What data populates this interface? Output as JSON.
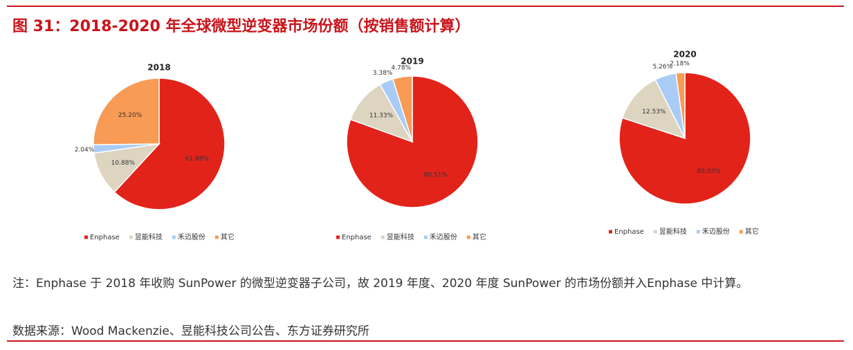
{
  "figure": {
    "title": "图 31：2018-2020 年全球微型逆变器市场份额（按销售额计算）",
    "note": "注：Enphase 于 2018 年收购 SunPower 的微型逆变器子公司，故 2019 年度、2020 年度 SunPower 的市场份额并入Enphase 中计算。",
    "source": "数据来源：Wood Mackenzie、昱能科技公司公告、东方证券研究所"
  },
  "chart_data": [
    {
      "type": "pie",
      "title": "2018",
      "categories": [
        "Enphase",
        "昱能科技",
        "禾迈股份",
        "其它"
      ],
      "values": [
        61.88,
        10.88,
        2.04,
        25.2
      ],
      "value_labels": [
        "61.88%",
        "10.88%",
        "2.04%",
        "25.20%"
      ],
      "colors": [
        "#e2231a",
        "#ddd5c0",
        "#a9ccf7",
        "#f79b55"
      ]
    },
    {
      "type": "pie",
      "title": "2019",
      "categories": [
        "Enphase",
        "昱能科技",
        "禾迈股份",
        "其它"
      ],
      "values": [
        80.51,
        11.33,
        3.38,
        4.78
      ],
      "value_labels": [
        "80.51%",
        "11.33%",
        "3.38%",
        "4.78%"
      ],
      "colors": [
        "#e2231a",
        "#ddd5c0",
        "#a9ccf7",
        "#f79b55"
      ]
    },
    {
      "type": "pie",
      "title": "2020",
      "categories": [
        "Enphase",
        "昱能科技",
        "禾迈股份",
        "其它"
      ],
      "values": [
        80.03,
        12.53,
        5.26,
        2.18
      ],
      "value_labels": [
        "80.03%",
        "12.53%",
        "5.26%",
        "2.18%"
      ],
      "colors": [
        "#e2231a",
        "#ddd5c0",
        "#a9ccf7",
        "#f79b55"
      ]
    }
  ]
}
